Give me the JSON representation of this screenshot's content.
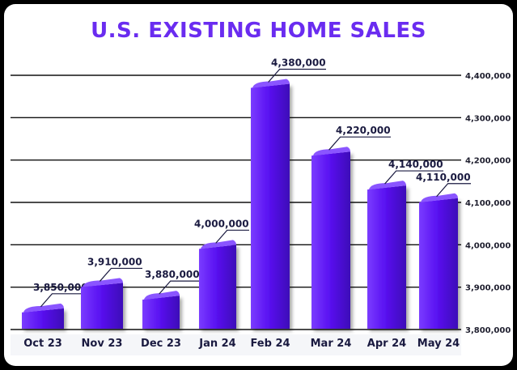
{
  "chart_data": {
    "type": "bar",
    "title": "U.S. EXISTING HOME SALES",
    "categories": [
      "Oct 23",
      "Nov 23",
      "Dec 23",
      "Jan 24",
      "Feb 24",
      "Mar 24",
      "Apr 24",
      "May 24"
    ],
    "values": [
      3850000,
      3910000,
      3880000,
      4000000,
      4380000,
      4220000,
      4140000,
      4110000
    ],
    "data_labels": [
      "3,850,000",
      "3,910,000",
      "3,880,000",
      "4,000,000",
      "4,380,000",
      "4,220,000",
      "4,140,000",
      "4,110,000"
    ],
    "ylim": [
      3800000,
      4400000
    ],
    "yticks": [
      3800000,
      3900000,
      4000000,
      4100000,
      4200000,
      4300000,
      4400000
    ],
    "ytick_labels": [
      "3,800,000",
      "3,900,000",
      "4,000,000",
      "4,100,000",
      "4,200,000",
      "4,300,000",
      "4,400,000"
    ],
    "yaxis_side": "right",
    "grid": true,
    "colors": {
      "bar": "#5a12f2",
      "bar_top": "#8a55ff",
      "title": "#6a2cf0"
    }
  }
}
